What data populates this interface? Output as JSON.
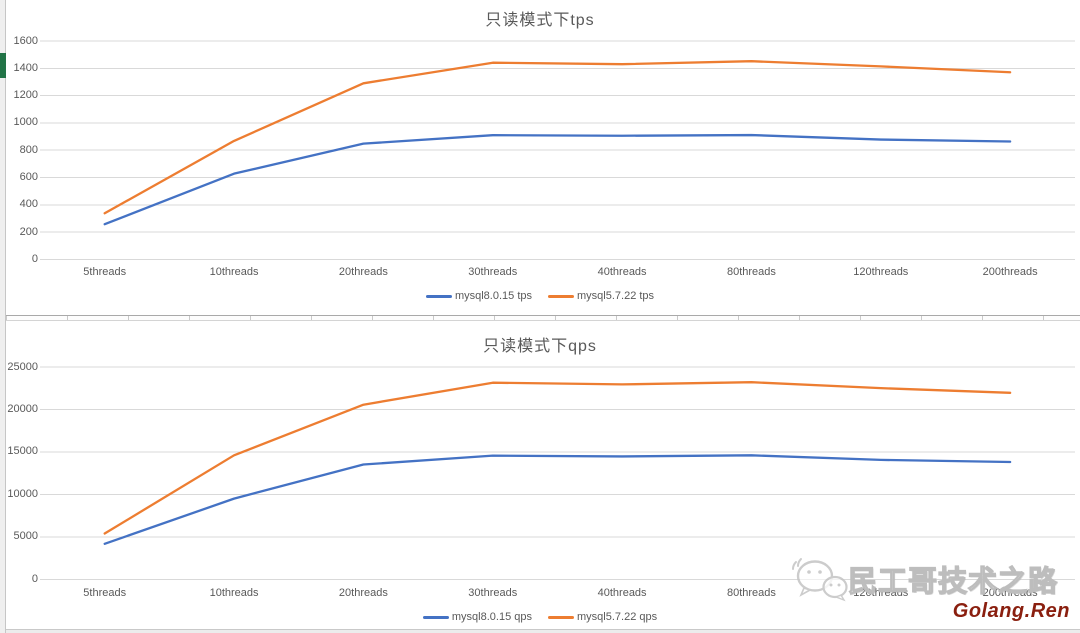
{
  "watermark": {
    "brand": "民工哥技术之路",
    "site": "Golang.Ren",
    "brand_color": "#bdbdbd",
    "site_color": "#8a1f0f"
  },
  "chart_data": [
    {
      "type": "line",
      "title": "只读模式下tps",
      "categories": [
        "5threads",
        "10threads",
        "20threads",
        "30threads",
        "40threads",
        "80threads",
        "120threads",
        "200threads"
      ],
      "series": [
        {
          "name": "mysql8.0.15 tps",
          "color": "#4472C4",
          "values": [
            258,
            628,
            848,
            910,
            906,
            911,
            878,
            864
          ]
        },
        {
          "name": "mysql5.7.22 tps",
          "color": "#ED7D31",
          "values": [
            338,
            868,
            1290,
            1441,
            1430,
            1452,
            1414,
            1371
          ]
        }
      ],
      "ylim": [
        0,
        1600
      ],
      "ytick_step": 200,
      "grid": true,
      "gridline_color": "#d9d9d9",
      "legend_position": "bottom"
    },
    {
      "type": "line",
      "title": "只读模式下qps",
      "categories": [
        "5threads",
        "10threads",
        "20threads",
        "30threads",
        "40threads",
        "80threads",
        "120threads",
        "200threads"
      ],
      "series": [
        {
          "name": "mysql8.0.15 qps",
          "color": "#4472C4",
          "values": [
            4180,
            9500,
            13520,
            14560,
            14470,
            14600,
            14060,
            13810
          ]
        },
        {
          "name": "mysql5.7.22 qps",
          "color": "#ED7D31",
          "values": [
            5390,
            14600,
            20560,
            23150,
            22950,
            23210,
            22510,
            21960
          ]
        }
      ],
      "ylim": [
        0,
        25000
      ],
      "ytick_step": 5000,
      "grid": true,
      "gridline_color": "#d9d9d9",
      "legend_position": "bottom"
    }
  ]
}
